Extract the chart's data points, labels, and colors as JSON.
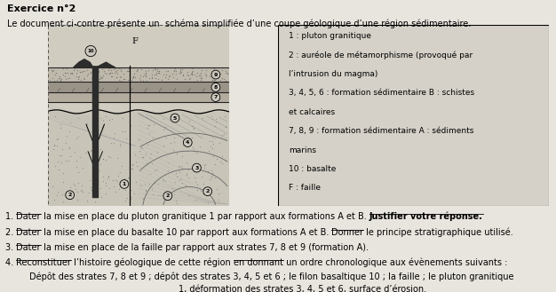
{
  "title": "Exercice n°2",
  "subtitle": "Le document ci-contre présente un  schéma simplifiée d’une coupe géologique d’une région sédimentaire.",
  "legend_lines": [
    "1 : pluton granitique",
    "2 : auréole de métamorphisme (provoqué par",
    "l’intrusion du magma)",
    "3, 4, 5, 6 : formation sédimentaire B : schistes",
    "et calcaires",
    "7, 8, 9 : formation sédimentaire A : sédiments",
    "marins",
    "10 : basalte",
    "F : faille"
  ],
  "q1": "1.   Dater la mise en place du pluton granitique 1 par rapport aux formations A et B. Justifier votre réponse.",
  "q2": "2.   Dater la mise en place du basalte 10 par rapport aux formations A et B. Donner le principe stratigraphique utilisé.",
  "q3": "3.   Dater la mise en place de la faille par rapport aux strates 7, 8 et 9 (formation A).",
  "q4": "4.   Reconstituer l’histoire géologique de cette région en donnant un ordre chronologique aux évènements suivants :",
  "q4b": "Dépôt des strates 7, 8 et 9 ; dépôt des strates 3, 4, 5 et 6 ; le filon basaltique 10 ; la faille ; le pluton granitique",
  "q4c": "1, déformation des strates 3, 4, 5 et 6, surface d’érosion.",
  "fig_bg": "#e8e5de",
  "diagram_bg": "#d0ccc0",
  "legend_bg": "#d5d1c8",
  "font_size_title": 8,
  "font_size_subtitle": 7,
  "font_size_legend": 6.5,
  "font_size_q": 7
}
